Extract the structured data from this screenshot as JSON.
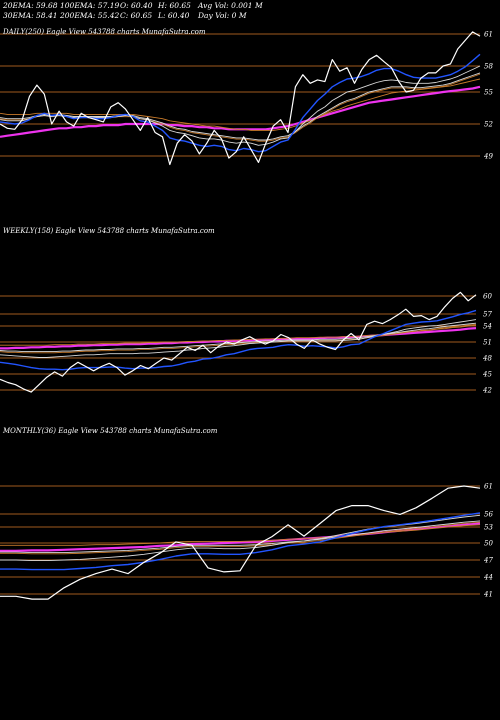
{
  "header": {
    "ema20": "20EMA: 59.68",
    "ema100": "100EMA: 57.19",
    "open": "O: 60.40",
    "high": "H: 60.65",
    "avgvol": "Avg Vol: 0.001 M",
    "ema30": "30EMA: 58.41",
    "ema200": "200EMA: 55.42",
    "close": "C: 60.65",
    "low": "L: 60.40",
    "dayvol": "Day Vol: 0  M"
  },
  "colors": {
    "price": "#ffffff",
    "ema_short": "#2255ff",
    "ema_long": "#ee33ee",
    "ema_mid_a": "#d8d8d8",
    "ema_mid_b": "#c87a2a",
    "gridline": "#a05a1e"
  },
  "chart_data": [
    {
      "type": "line",
      "title": "DAILY(250) Eagle  View  543788  charts MunafaSutra.com",
      "yticks": [
        "61",
        "58",
        "55",
        "52",
        "49"
      ],
      "series": [
        {
          "values": [
            52.0,
            51.6,
            51.5,
            52.4,
            54.6,
            55.8,
            54.8,
            52.0,
            53.2,
            52.2,
            51.8,
            53.0,
            52.6,
            52.4,
            52.2,
            53.6,
            54.0,
            53.4,
            52.4,
            51.4,
            52.6,
            51.2,
            50.8,
            48.2,
            50.2,
            51.0,
            50.4,
            49.2,
            50.2,
            51.4,
            50.6,
            48.8,
            49.4,
            50.8,
            49.6,
            48.4,
            50.2,
            51.8,
            52.4,
            51.2,
            55.6,
            57.0,
            56.0,
            56.4,
            56.2,
            58.6,
            57.4,
            57.8,
            56.0,
            57.6,
            58.6,
            59.0,
            58.4,
            57.8,
            56.2,
            55.0,
            55.2,
            56.6,
            57.2,
            57.2,
            58.0,
            58.2,
            59.6,
            60.4,
            61.2,
            60.8
          ]
        },
        {
          "values": [
            52.2,
            52.1,
            52.0,
            52.1,
            52.4,
            52.8,
            53.0,
            52.8,
            52.9,
            52.7,
            52.5,
            52.6,
            52.6,
            52.5,
            52.5,
            52.6,
            52.8,
            52.9,
            52.7,
            52.3,
            52.2,
            51.8,
            51.4,
            50.7,
            50.5,
            50.4,
            50.2,
            50.0,
            49.9,
            50.0,
            49.9,
            49.6,
            49.5,
            49.7,
            49.6,
            49.4,
            49.5,
            49.9,
            50.3,
            50.5,
            51.5,
            52.6,
            53.4,
            54.2,
            54.8,
            55.6,
            56.1,
            56.5,
            56.6,
            56.8,
            57.1,
            57.5,
            57.7,
            57.7,
            57.4,
            57.0,
            56.7,
            56.6,
            56.6,
            56.6,
            56.8,
            57.0,
            57.4,
            57.9,
            58.5,
            59.1
          ]
        },
        {
          "values": [
            52.4,
            52.3,
            52.3,
            52.3,
            52.5,
            52.7,
            52.8,
            52.7,
            52.8,
            52.7,
            52.6,
            52.6,
            52.6,
            52.6,
            52.6,
            52.6,
            52.7,
            52.8,
            52.7,
            52.5,
            52.4,
            52.1,
            51.8,
            51.4,
            51.2,
            51.1,
            50.9,
            50.7,
            50.6,
            50.6,
            50.5,
            50.3,
            50.2,
            50.3,
            50.2,
            50.0,
            50.1,
            50.3,
            50.6,
            50.7,
            51.3,
            52.0,
            52.6,
            53.2,
            53.6,
            54.2,
            54.6,
            55.0,
            55.2,
            55.5,
            55.8,
            56.1,
            56.3,
            56.4,
            56.3,
            56.1,
            56.0,
            56.0,
            56.0,
            56.1,
            56.3,
            56.5,
            56.8,
            57.2,
            57.6,
            58.0
          ]
        },
        {
          "values": [
            52.6,
            52.5,
            52.5,
            52.5,
            52.6,
            52.8,
            52.9,
            52.8,
            52.9,
            52.8,
            52.7,
            52.7,
            52.7,
            52.7,
            52.7,
            52.7,
            52.8,
            52.8,
            52.8,
            52.6,
            52.5,
            52.3,
            52.1,
            51.8,
            51.6,
            51.5,
            51.3,
            51.2,
            51.1,
            51.0,
            50.9,
            50.8,
            50.7,
            50.7,
            50.6,
            50.5,
            50.5,
            50.6,
            50.8,
            50.9,
            51.3,
            51.8,
            52.2,
            52.7,
            53.1,
            53.5,
            53.9,
            54.2,
            54.4,
            54.7,
            55.0,
            55.2,
            55.4,
            55.6,
            55.6,
            55.6,
            55.5,
            55.5,
            55.6,
            55.7,
            55.8,
            56.0,
            56.3,
            56.6,
            56.9,
            57.2
          ]
        },
        {
          "values": [
            53.0,
            52.9,
            52.9,
            52.9,
            52.9,
            53.0,
            53.0,
            53.0,
            53.0,
            53.0,
            52.9,
            52.9,
            52.9,
            52.9,
            52.9,
            52.9,
            52.9,
            52.9,
            52.9,
            52.8,
            52.7,
            52.6,
            52.5,
            52.3,
            52.2,
            52.1,
            52.0,
            51.9,
            51.8,
            51.8,
            51.7,
            51.6,
            51.5,
            51.5,
            51.4,
            51.4,
            51.4,
            51.4,
            51.5,
            51.6,
            51.8,
            52.1,
            52.3,
            52.6,
            52.9,
            53.2,
            53.4,
            53.7,
            53.9,
            54.1,
            54.3,
            54.5,
            54.7,
            54.9,
            55.0,
            55.1,
            55.2,
            55.3,
            55.4,
            55.5,
            55.6,
            55.7,
            55.9,
            56.1,
            56.3,
            56.5
          ]
        },
        {
          "values": [
            50.8,
            50.9,
            51.0,
            51.1,
            51.2,
            51.3,
            51.4,
            51.5,
            51.6,
            51.6,
            51.7,
            51.7,
            51.8,
            51.8,
            51.9,
            51.9,
            51.9,
            52.0,
            52.0,
            52.0,
            52.0,
            52.0,
            52.0,
            51.9,
            51.9,
            51.8,
            51.8,
            51.7,
            51.7,
            51.6,
            51.6,
            51.5,
            51.5,
            51.5,
            51.5,
            51.5,
            51.5,
            51.6,
            51.7,
            51.8,
            52.0,
            52.2,
            52.4,
            52.6,
            52.8,
            53.0,
            53.2,
            53.4,
            53.6,
            53.8,
            54.0,
            54.1,
            54.2,
            54.3,
            54.4,
            54.5,
            54.6,
            54.7,
            54.8,
            54.9,
            55.0,
            55.1,
            55.2,
            55.3,
            55.4,
            55.6
          ]
        }
      ]
    },
    {
      "type": "line",
      "title": "WEEKLY(158) Eagle  View  543788  charts MunafaSutra.com",
      "yticks": [
        "60",
        "57",
        "54",
        "51",
        "48",
        "45",
        "42"
      ],
      "series": [
        {
          "values": [
            44.0,
            43.4,
            43.0,
            42.2,
            41.6,
            43.0,
            44.4,
            45.4,
            44.6,
            46.2,
            47.2,
            46.4,
            45.6,
            46.4,
            47.0,
            46.2,
            44.8,
            45.6,
            46.6,
            46.0,
            47.0,
            48.0,
            47.6,
            48.8,
            50.0,
            49.4,
            50.4,
            49.0,
            50.2,
            51.0,
            50.6,
            51.4,
            52.0,
            51.2,
            50.6,
            51.2,
            52.4,
            51.8,
            50.6,
            49.8,
            51.4,
            50.6,
            50.0,
            49.6,
            51.4,
            52.6,
            51.4,
            54.4,
            55.2,
            54.6,
            55.6,
            56.8,
            57.8,
            56.4,
            56.6,
            55.6,
            56.4,
            58.2,
            59.6,
            60.6,
            59.2,
            60.2
          ]
        },
        {
          "values": [
            47.2,
            47.0,
            46.8,
            46.5,
            46.2,
            46.0,
            45.9,
            45.9,
            45.8,
            45.9,
            46.1,
            46.2,
            46.2,
            46.2,
            46.3,
            46.3,
            46.1,
            46.0,
            46.1,
            46.1,
            46.2,
            46.4,
            46.5,
            46.8,
            47.2,
            47.4,
            47.8,
            47.9,
            48.2,
            48.6,
            48.8,
            49.2,
            49.6,
            49.8,
            49.9,
            50.0,
            50.3,
            50.5,
            50.4,
            50.2,
            50.3,
            50.2,
            50.1,
            49.9,
            50.1,
            50.5,
            50.6,
            51.3,
            52.0,
            52.5,
            53.1,
            53.7,
            54.4,
            54.7,
            55.0,
            55.1,
            55.3,
            55.8,
            56.3,
            56.9,
            57.2,
            57.6
          ]
        },
        {
          "values": [
            48.6,
            48.5,
            48.4,
            48.3,
            48.2,
            48.1,
            48.1,
            48.2,
            48.3,
            48.4,
            48.5,
            48.6,
            48.6,
            48.7,
            48.8,
            48.8,
            48.8,
            48.8,
            48.9,
            48.9,
            49.0,
            49.1,
            49.2,
            49.3,
            49.5,
            49.6,
            49.8,
            49.9,
            50.0,
            50.2,
            50.3,
            50.5,
            50.7,
            50.8,
            50.9,
            51.0,
            51.1,
            51.2,
            51.2,
            51.2,
            51.2,
            51.2,
            51.2,
            51.2,
            51.3,
            51.4,
            51.5,
            51.8,
            52.1,
            52.4,
            52.7,
            53.0,
            53.4,
            53.6,
            53.8,
            54.0,
            54.1,
            54.4,
            54.7,
            55.0,
            55.3,
            55.6
          ]
        },
        {
          "values": [
            49.4,
            49.3,
            49.3,
            49.2,
            49.2,
            49.2,
            49.2,
            49.2,
            49.3,
            49.3,
            49.4,
            49.5,
            49.5,
            49.6,
            49.6,
            49.7,
            49.7,
            49.7,
            49.8,
            49.8,
            49.9,
            50.0,
            50.0,
            50.1,
            50.2,
            50.3,
            50.4,
            50.5,
            50.6,
            50.7,
            50.8,
            50.9,
            51.0,
            51.1,
            51.2,
            51.2,
            51.3,
            51.4,
            51.4,
            51.4,
            51.4,
            51.5,
            51.5,
            51.5,
            51.6,
            51.7,
            51.8,
            52.0,
            52.2,
            52.4,
            52.6,
            52.8,
            53.0,
            53.2,
            53.4,
            53.5,
            53.7,
            53.9,
            54.1,
            54.3,
            54.5,
            54.7
          ]
        },
        {
          "values": [
            50.4,
            50.4,
            50.4,
            50.4,
            50.4,
            50.4,
            50.4,
            50.5,
            50.5,
            50.5,
            50.6,
            50.6,
            50.6,
            50.7,
            50.7,
            50.7,
            50.8,
            50.8,
            50.8,
            50.9,
            50.9,
            51.0,
            51.0,
            51.0,
            51.1,
            51.1,
            51.2,
            51.2,
            51.3,
            51.3,
            51.4,
            51.4,
            51.5,
            51.5,
            51.6,
            51.6,
            51.7,
            51.7,
            51.8,
            51.8,
            51.8,
            51.9,
            51.9,
            51.9,
            52.0,
            52.0,
            52.1,
            52.2,
            52.3,
            52.4,
            52.6,
            52.7,
            52.9,
            53.0,
            53.1,
            53.2,
            53.4,
            53.5,
            53.7,
            53.8,
            54.0,
            54.2
          ]
        },
        {
          "values": [
            49.8,
            49.8,
            49.9,
            49.9,
            50.0,
            50.0,
            50.1,
            50.1,
            50.2,
            50.2,
            50.3,
            50.3,
            50.4,
            50.4,
            50.5,
            50.5,
            50.6,
            50.6,
            50.6,
            50.7,
            50.7,
            50.8,
            50.8,
            50.9,
            50.9,
            51.0,
            51.0,
            51.1,
            51.1,
            51.2,
            51.2,
            51.3,
            51.3,
            51.4,
            51.4,
            51.5,
            51.5,
            51.6,
            51.6,
            51.6,
            51.7,
            51.7,
            51.8,
            51.8,
            51.9,
            51.9,
            52.0,
            52.1,
            52.2,
            52.3,
            52.4,
            52.5,
            52.6,
            52.7,
            52.8,
            52.9,
            53.0,
            53.1,
            53.2,
            53.3,
            53.5,
            53.6
          ]
        }
      ]
    },
    {
      "type": "line",
      "title": "MONTHLY(36) Eagle  View  543788  charts MunafaSutra.com",
      "yticks": [
        "61",
        "56",
        "53",
        "50",
        "47",
        "44",
        "41"
      ],
      "series": [
        {
          "values": [
            40.6,
            40.6,
            40.1,
            40.1,
            42.1,
            43.6,
            44.6,
            45.4,
            44.6,
            46.6,
            48.2,
            50.2,
            49.6,
            45.6,
            44.9,
            45.1,
            49.6,
            51.2,
            53.5,
            51.3,
            53.8,
            56.6,
            57.5,
            57.5,
            56.6,
            55.9,
            57.1,
            58.8,
            60.6,
            61.0,
            60.6
          ]
        },
        {
          "values": [
            45.4,
            45.4,
            45.3,
            45.3,
            45.3,
            45.5,
            45.7,
            46.0,
            46.2,
            46.6,
            47.1,
            47.7,
            48.1,
            48.1,
            48.0,
            48.0,
            48.3,
            48.8,
            49.5,
            49.8,
            50.2,
            51.0,
            51.8,
            52.5,
            53.1,
            53.5,
            54.0,
            54.5,
            55.1,
            55.7,
            56.2
          ]
        },
        {
          "values": [
            47.0,
            47.0,
            46.9,
            46.9,
            47.0,
            47.1,
            47.3,
            47.5,
            47.7,
            48.0,
            48.4,
            48.8,
            49.1,
            49.1,
            49.0,
            49.0,
            49.2,
            49.6,
            50.1,
            50.4,
            50.8,
            51.4,
            52.0,
            52.6,
            53.0,
            53.4,
            53.8,
            54.3,
            54.8,
            55.3,
            55.7
          ]
        },
        {
          "values": [
            48.4,
            48.4,
            48.3,
            48.3,
            48.3,
            48.4,
            48.5,
            48.6,
            48.7,
            48.9,
            49.1,
            49.4,
            49.6,
            49.6,
            49.6,
            49.6,
            49.7,
            49.9,
            50.2,
            50.4,
            50.7,
            51.1,
            51.5,
            51.9,
            52.3,
            52.6,
            52.9,
            53.3,
            53.7,
            54.1,
            54.4
          ]
        },
        {
          "values": [
            49.6,
            49.6,
            49.6,
            49.6,
            49.6,
            49.6,
            49.7,
            49.7,
            49.8,
            49.9,
            50.0,
            50.2,
            50.3,
            50.3,
            50.3,
            50.3,
            50.4,
            50.5,
            50.7,
            50.8,
            51.0,
            51.2,
            51.5,
            51.7,
            52.0,
            52.2,
            52.4,
            52.7,
            53.0,
            53.3,
            53.5
          ]
        },
        {
          "values": [
            48.6,
            48.6,
            48.7,
            48.7,
            48.8,
            48.9,
            49.0,
            49.1,
            49.2,
            49.3,
            49.5,
            49.6,
            49.8,
            49.9,
            50.0,
            50.1,
            50.2,
            50.4,
            50.6,
            50.8,
            51.0,
            51.2,
            51.5,
            51.7,
            52.0,
            52.3,
            52.6,
            52.9,
            53.2,
            53.5,
            53.8
          ]
        }
      ]
    }
  ]
}
